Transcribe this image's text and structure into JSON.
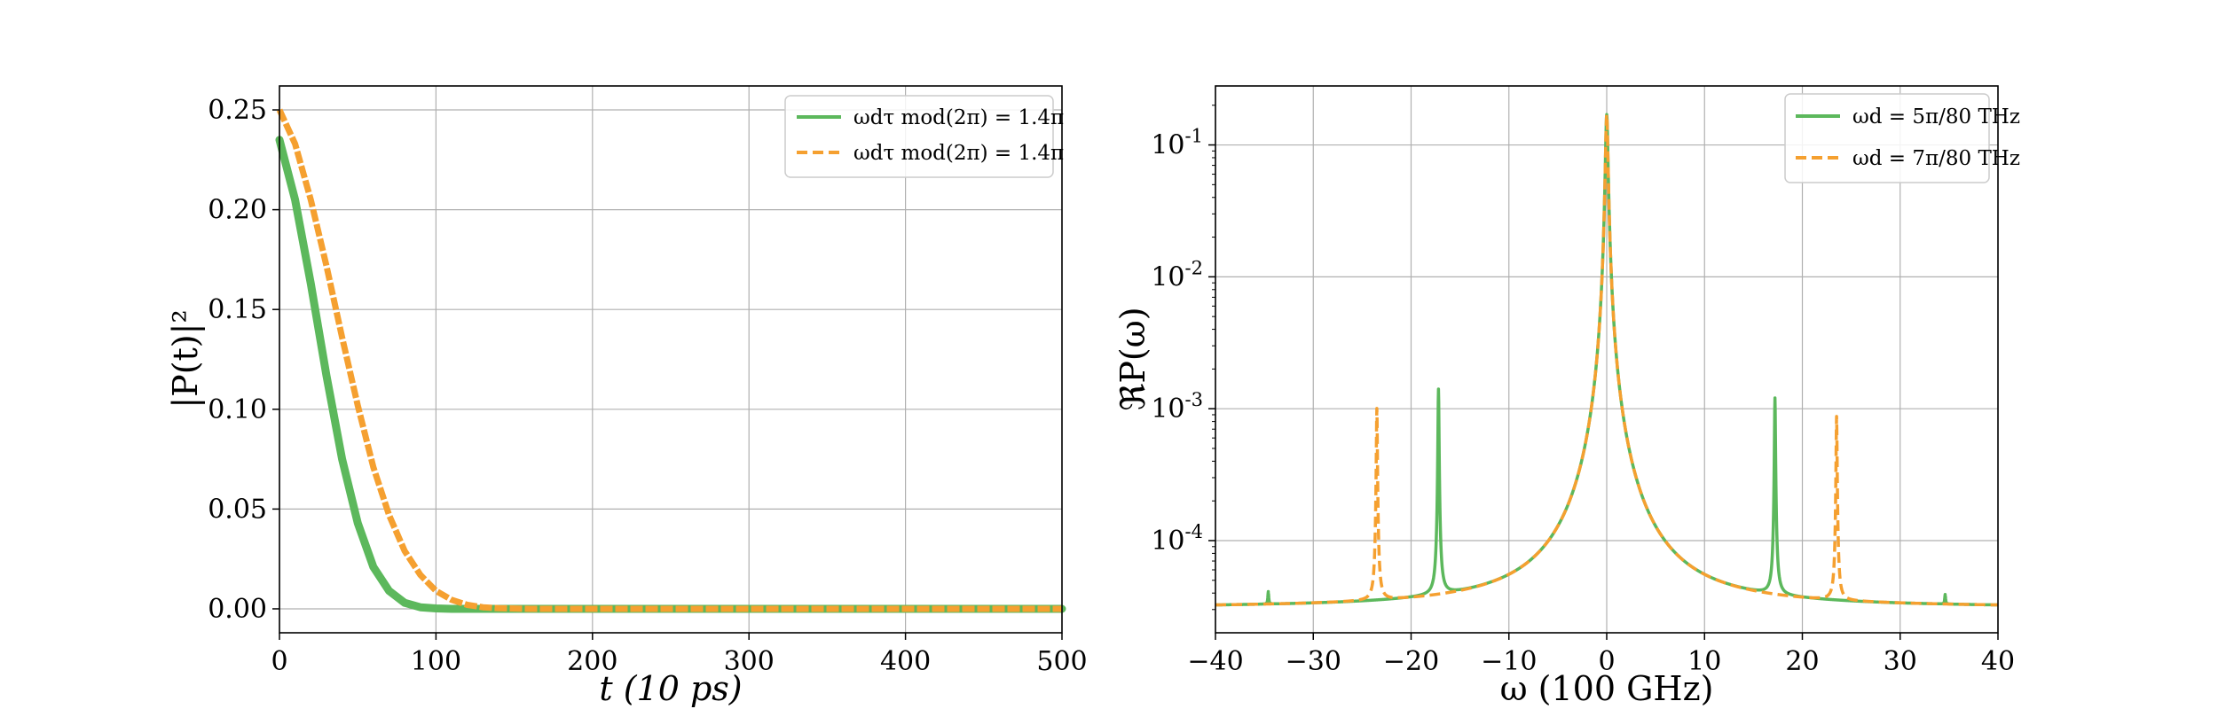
{
  "chart_data": [
    {
      "type": "line",
      "xlabel": "t (10 ps)",
      "ylabel": "|P(t)|²",
      "xlim": [
        0,
        500
      ],
      "ylim": [
        -0.012,
        0.262
      ],
      "xscale": "linear",
      "yscale": "linear",
      "grid": true,
      "legend_position": "top-right",
      "xticks": [
        "0",
        "100",
        "200",
        "300",
        "400",
        "500"
      ],
      "yticks": [
        "0.00",
        "0.05",
        "0.10",
        "0.15",
        "0.20",
        "0.25"
      ],
      "series": [
        {
          "name": "ωdτ mod(2π) = 1.4π",
          "color": "#5cb85c",
          "style": "solid",
          "x": [
            0,
            10,
            20,
            30,
            40,
            50,
            60,
            70,
            80,
            90,
            100,
            110,
            120,
            500
          ],
          "y": [
            0.235,
            0.205,
            0.163,
            0.117,
            0.075,
            0.043,
            0.021,
            0.009,
            0.003,
            0.0008,
            0.0002,
            0.0,
            0.0,
            0.0
          ]
        },
        {
          "name": "ωdτ mod(2π) = 1.4π",
          "color": "#f5a030",
          "style": "dashed",
          "x": [
            0,
            10,
            20,
            30,
            40,
            50,
            60,
            70,
            80,
            90,
            100,
            110,
            120,
            130,
            140,
            160,
            500
          ],
          "y": [
            0.25,
            0.233,
            0.205,
            0.172,
            0.136,
            0.102,
            0.071,
            0.047,
            0.029,
            0.017,
            0.009,
            0.0045,
            0.002,
            0.0008,
            0.0003,
            0.0,
            0.0
          ]
        }
      ]
    },
    {
      "type": "line",
      "xlabel": "ω (100 GHz)",
      "ylabel": "ℜP(ω)",
      "xlim": [
        -40,
        40
      ],
      "ylim": [
        2e-05,
        0.28
      ],
      "xscale": "linear",
      "yscale": "log",
      "grid": true,
      "legend_position": "top-right",
      "xticks": [
        "−40",
        "−30",
        "−20",
        "−10",
        "0",
        "10",
        "20",
        "30",
        "40"
      ],
      "yticks": [
        "10-4",
        "10-3",
        "10-2",
        "10-1"
      ],
      "baseline": 3.1e-05,
      "series": [
        {
          "name": "ωd = 5π/80 THz",
          "color": "#5cb85c",
          "style": "solid",
          "peaks": [
            {
              "x": -34.6,
              "y": 3.9e-05
            },
            {
              "x": -17.2,
              "y": 0.0014
            },
            {
              "x": 0,
              "y": 0.17
            },
            {
              "x": 17.2,
              "y": 0.0012
            },
            {
              "x": 34.6,
              "y": 3.7e-05
            }
          ]
        },
        {
          "name": "ωd = 7π/80 THz",
          "color": "#f5a030",
          "style": "dashed",
          "peaks": [
            {
              "x": -23.5,
              "y": 0.001
            },
            {
              "x": 0,
              "y": 0.17
            },
            {
              "x": 23.5,
              "y": 0.00087
            }
          ]
        }
      ]
    }
  ]
}
